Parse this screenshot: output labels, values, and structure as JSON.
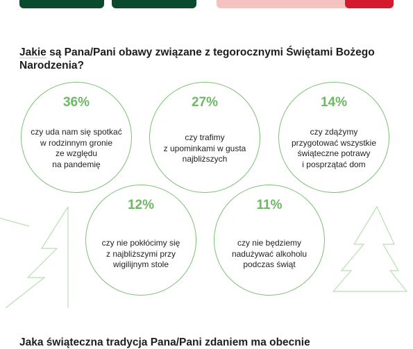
{
  "question_1": {
    "word_1": "Jakie",
    "rest": " są Pana/Pani obawy związane z tegorocznymi Świętami Bożego Narodzenia?"
  },
  "worries": [
    {
      "percent": "36%",
      "text": "czy uda nam się spotkać\nw rodzinnym gronie\nze względu\nna pandemię"
    },
    {
      "percent": "27%",
      "text": "czy trafimy\nz upominkami w gusta\nnajbliższych"
    },
    {
      "percent": "14%",
      "text": "czy zdążymy\nprzygotować wszystkie\nświąteczne potrawy\ni posprzątać dom"
    },
    {
      "percent": "12%",
      "text": "czy nie pokłócimy się\nz najbliższymi przy\nwigilijnym stole"
    },
    {
      "percent": "11%",
      "text": "czy nie będziemy\nnadużywać alkoholu\npodczas świąt"
    }
  ],
  "question_2": {
    "text": "Jaka świąteczna tradycja Pana/Pani zdaniem ma obecnie"
  },
  "colors": {
    "dark_green": "#0b4a2c",
    "light_green": "#6db865",
    "pink": "#f2c3c0",
    "red": "#d31a2e"
  },
  "icons": [
    "christmas-tree-outline-icon",
    "christmas-tree-outline-icon"
  ]
}
